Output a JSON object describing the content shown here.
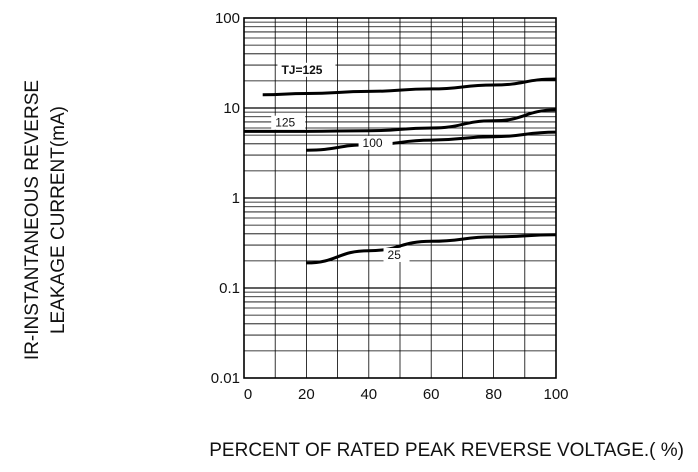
{
  "chart_data": {
    "type": "line",
    "xlabel": "PERCENT  OF  RATED PEAK REVERSE VOLTAGE.( %)",
    "ylabel_line1": "IR-INSTANTANEOUS REVERSE",
    "ylabel_line2": "LEAKAGE CURRENT(mA)",
    "xlim": [
      0,
      100
    ],
    "ylim": [
      0.01,
      100
    ],
    "yscale": "log",
    "grid": true,
    "x_ticks": [
      "0",
      "20",
      "40",
      "60",
      "80",
      "100"
    ],
    "y_ticks": [
      "100",
      "10",
      "1",
      "0.1",
      "0.01"
    ],
    "series": [
      {
        "name": "TJ=125",
        "x": [
          6,
          20,
          40,
          60,
          80,
          100
        ],
        "values": [
          14.0,
          14.5,
          15.3,
          16.3,
          18.0,
          21.0
        ]
      },
      {
        "name": "125",
        "x": [
          0,
          20,
          40,
          60,
          80,
          100
        ],
        "values": [
          5.5,
          5.5,
          5.6,
          6.0,
          7.2,
          9.5
        ]
      },
      {
        "name": "100",
        "x": [
          20,
          40,
          60,
          80,
          100
        ],
        "values": [
          3.4,
          3.9,
          4.4,
          4.8,
          5.4
        ]
      },
      {
        "name": "25",
        "x": [
          20,
          40,
          60,
          80,
          100
        ],
        "values": [
          0.19,
          0.26,
          0.33,
          0.37,
          0.39
        ]
      }
    ]
  }
}
